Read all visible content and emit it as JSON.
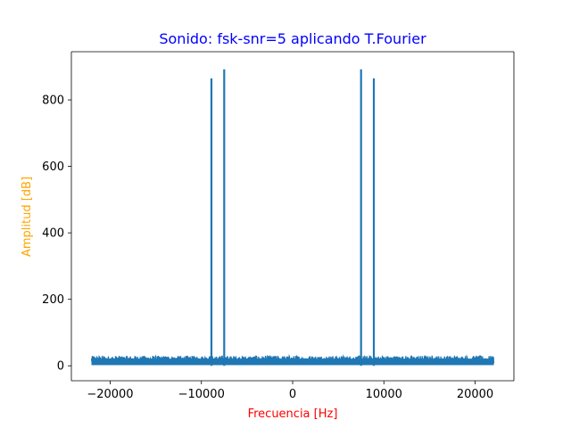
{
  "chart_data": {
    "type": "line",
    "title": "Sonido: fsk-snr=5 aplicando T.Fourier",
    "xlabel": "Frecuencia [Hz]",
    "ylabel": "Amplitud [dB]",
    "xlim": [
      -24250,
      24250
    ],
    "ylim": [
      -45,
      945
    ],
    "xticks": [
      -20000,
      -10000,
      0,
      10000,
      20000
    ],
    "xtick_labels": [
      "−20000",
      "−10000",
      "0",
      "10000",
      "20000"
    ],
    "yticks": [
      0,
      200,
      400,
      600,
      800
    ],
    "ytick_labels": [
      "0",
      "200",
      "400",
      "600",
      "800"
    ],
    "grid": false,
    "colors": {
      "series": "#1f77b4",
      "title": "#0000ff",
      "xlabel": "#ff0000",
      "ylabel": "#ffa500"
    },
    "series": [
      {
        "x_range": [
          -22050,
          22050
        ],
        "noise_floor_range": [
          0,
          30
        ],
        "peaks": [
          {
            "x": -8900,
            "y": 865
          },
          {
            "x": -7500,
            "y": 892
          },
          {
            "x": 7500,
            "y": 892
          },
          {
            "x": 8900,
            "y": 865
          }
        ]
      }
    ]
  }
}
